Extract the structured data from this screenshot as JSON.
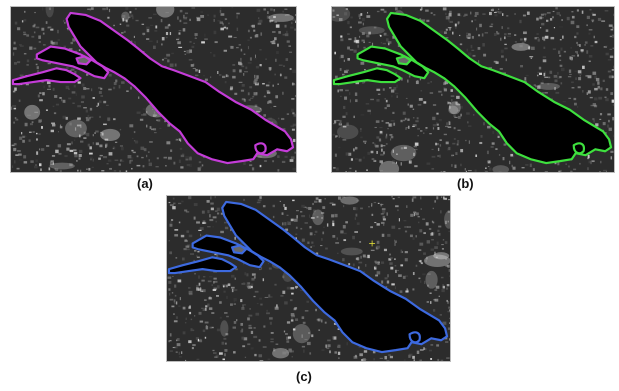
{
  "panels": [
    {
      "id": "a",
      "caption": "(a)",
      "outline_color": "#c43cd8"
    },
    {
      "id": "b",
      "caption": "(b)",
      "outline_color": "#3ee03e"
    },
    {
      "id": "c",
      "caption": "(c)",
      "outline_color": "#3d6ae0"
    }
  ],
  "colors": {
    "terrain_dark": "#2c2c2c",
    "terrain_light": "#d8d8d8",
    "lake": "#000000",
    "crosshair_marker": "#e6e23a"
  }
}
